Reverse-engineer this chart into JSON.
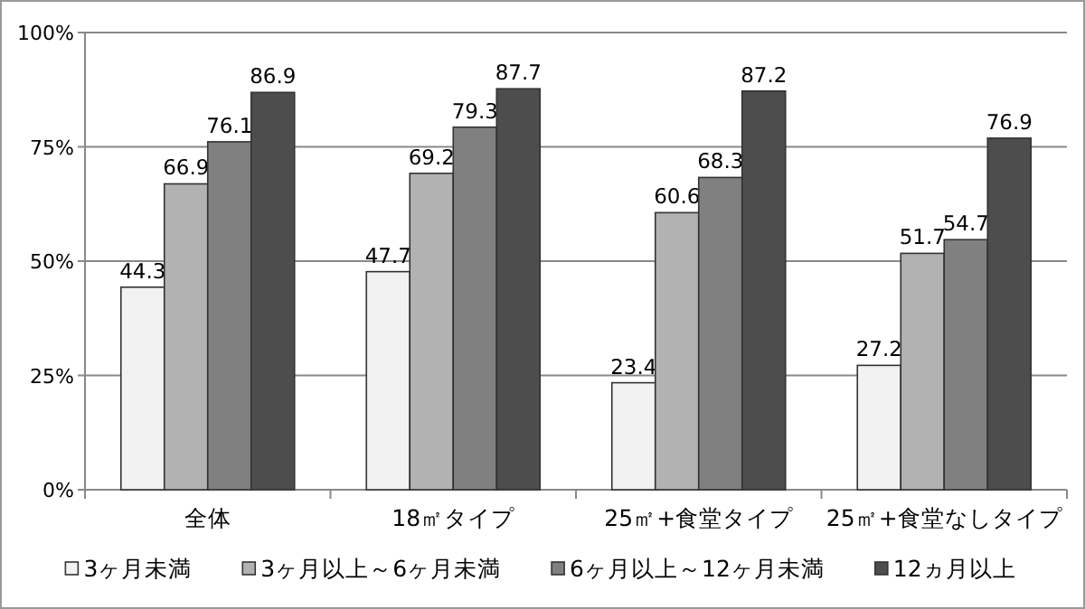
{
  "chart_data": {
    "type": "bar",
    "categories": [
      "全体",
      "18㎡タイプ",
      "25㎡+食堂タイプ",
      "25㎡+食堂なしタイプ"
    ],
    "series": [
      {
        "name": "3ヶ月未満",
        "color": "#f2f2f2",
        "values": [
          44.3,
          47.7,
          23.4,
          27.2
        ]
      },
      {
        "name": "3ヶ月以上～6ヶ月未満",
        "color": "#b2b2b2",
        "values": [
          66.9,
          69.2,
          60.6,
          51.7
        ]
      },
      {
        "name": "6ヶ月以上～12ヶ月未満",
        "color": "#808080",
        "values": [
          76.1,
          79.3,
          68.3,
          54.7
        ]
      },
      {
        "name": "12ヵ月以上",
        "color": "#4d4d4d",
        "values": [
          86.9,
          87.7,
          87.2,
          76.9
        ]
      }
    ],
    "ylim": [
      0,
      100
    ],
    "yticks": [
      {
        "value": 0,
        "label": "0%"
      },
      {
        "value": 25,
        "label": "25%"
      },
      {
        "value": 50,
        "label": "50%"
      },
      {
        "value": 75,
        "label": "75%"
      },
      {
        "value": 100,
        "label": "100%"
      }
    ],
    "grid": "y",
    "legend": "bottom",
    "data_labels": true
  }
}
